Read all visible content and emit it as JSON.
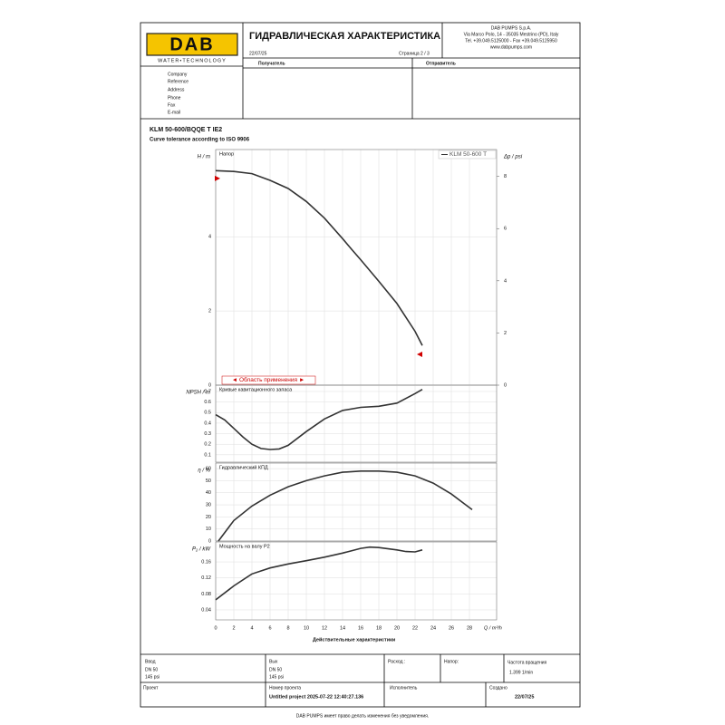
{
  "header": {
    "logo": "DAB",
    "tagline": "WATER•TECHNOLOGY",
    "title": "ГИДРАВЛИЧЕСКАЯ ХАРАКТЕРИСТИКА",
    "date": "22/07/25",
    "page": "Страница 2 / 3",
    "company": [
      "DAB PUMPS S.p.A.",
      "Via Marco Polo, 14 - 35035 Mestrino (PD), Italy",
      "Tel. +39.049.5125000 - Fax +39.049.5125950",
      "www.dabpumps.com"
    ],
    "recipient_label": "Получатель",
    "sender_label": "Отправитель"
  },
  "contact_fields": [
    "Company",
    "Reference",
    "Address",
    "Phone",
    "Fax",
    "E-mail"
  ],
  "pump": {
    "model": "KLM 50-600/BQQE T IE2",
    "tolerance": "Curve tolerance according to ISO 9906"
  },
  "chart_data": [
    {
      "type": "line",
      "annotation": "Напор",
      "ylabel": "H / m",
      "y2label": "Δp / psi",
      "range_label": "◄ Область применения ►",
      "xlim": [
        0,
        31
      ],
      "ylim": [
        0,
        6.35
      ],
      "yticks": [
        0,
        2,
        4
      ],
      "y2lim": [
        0,
        9.03
      ],
      "y2ticks": [
        0,
        2,
        4,
        6,
        8
      ],
      "grid": true,
      "series": [
        {
          "name": "KLM 50-600 T",
          "color": "#333333",
          "x": [
            0,
            2,
            4,
            6,
            8,
            10,
            12,
            14,
            15,
            16,
            18,
            20,
            22,
            22.8
          ],
          "values": [
            5.78,
            5.76,
            5.7,
            5.52,
            5.3,
            4.95,
            4.5,
            3.95,
            3.66,
            3.38,
            2.8,
            2.2,
            1.45,
            1.07
          ]
        },
        {
          "color": "#d00000",
          "marker": "triangle",
          "x": [
            0.2,
            22.5
          ],
          "values": [
            5.57,
            0.83
          ]
        }
      ]
    },
    {
      "type": "line",
      "annotation": "Кривые кавитационного запаса",
      "ylabel": "NPSH / m",
      "xlim": [
        0,
        31
      ],
      "ylim": [
        0.03,
        0.76
      ],
      "yticks": [
        0.1,
        0.2,
        0.3,
        0.4,
        0.5,
        0.6,
        0.7
      ],
      "grid": true,
      "series": [
        {
          "color": "#333333",
          "x": [
            0,
            1,
            2,
            3,
            4,
            5,
            6,
            7,
            8,
            10,
            12,
            14,
            16,
            18,
            20,
            22,
            22.8
          ],
          "values": [
            0.48,
            0.43,
            0.35,
            0.27,
            0.2,
            0.16,
            0.15,
            0.155,
            0.19,
            0.32,
            0.44,
            0.52,
            0.55,
            0.56,
            0.59,
            0.68,
            0.72
          ]
        }
      ]
    },
    {
      "type": "line",
      "annotation": "Гидравлический КПД",
      "ylabel": "η / %",
      "xlim": [
        0,
        31
      ],
      "ylim": [
        0,
        64.6
      ],
      "yticks": [
        0,
        10,
        20,
        30,
        40,
        50,
        60
      ],
      "grid": true,
      "series": [
        {
          "color": "#333333",
          "x": [
            0.3,
            2,
            4,
            6,
            8,
            10,
            12,
            14,
            16,
            18,
            20,
            22,
            24,
            26,
            28.3
          ],
          "values": [
            0,
            17,
            29,
            38,
            45,
            50,
            54,
            57,
            58,
            58,
            57,
            54,
            48,
            39,
            26
          ]
        }
      ]
    },
    {
      "type": "line",
      "annotation": "Мощность на валу P2",
      "ylabel": "P₂ / kW",
      "xlabel": "Q / m³/h",
      "caption": "Действительные характеристики",
      "xlim": [
        0,
        31
      ],
      "xticks": [
        0,
        2,
        4,
        6,
        8,
        10,
        12,
        14,
        16,
        18,
        20,
        22,
        24,
        26,
        28
      ],
      "ylim": [
        0.015,
        0.21
      ],
      "yticks": [
        0.04,
        0.08,
        0.12,
        0.16
      ],
      "grid": true,
      "series": [
        {
          "color": "#333333",
          "x": [
            0,
            2,
            4,
            6,
            8,
            10,
            12,
            14,
            16,
            17,
            18,
            20,
            21,
            22,
            22.8
          ],
          "values": [
            0.065,
            0.1,
            0.13,
            0.145,
            0.155,
            0.163,
            0.172,
            0.182,
            0.194,
            0.197,
            0.196,
            0.19,
            0.186,
            0.185,
            0.19
          ]
        }
      ]
    }
  ],
  "footer": {
    "inlet_label": "Ввод",
    "inlet_dn": "DN 50",
    "inlet_p": "145 psi",
    "outlet_label": "Вых",
    "outlet_dn": "DN 50",
    "outlet_p": "145 psi",
    "flow_label": "Расход :",
    "head_label": "Напор:",
    "speed_label": "Частота вращения",
    "speed": "1.399 1/min",
    "project_label": "Проект",
    "project_no_label": "Номер проекта",
    "project_no": "Untitled project 2025-07-22 12:40:27.136",
    "executor_label": "Исполнитель",
    "created_label": "Создано",
    "created": "22/07/25"
  },
  "disclaimer": "DAB PUMPS имеет право делать изменения без уведомления."
}
